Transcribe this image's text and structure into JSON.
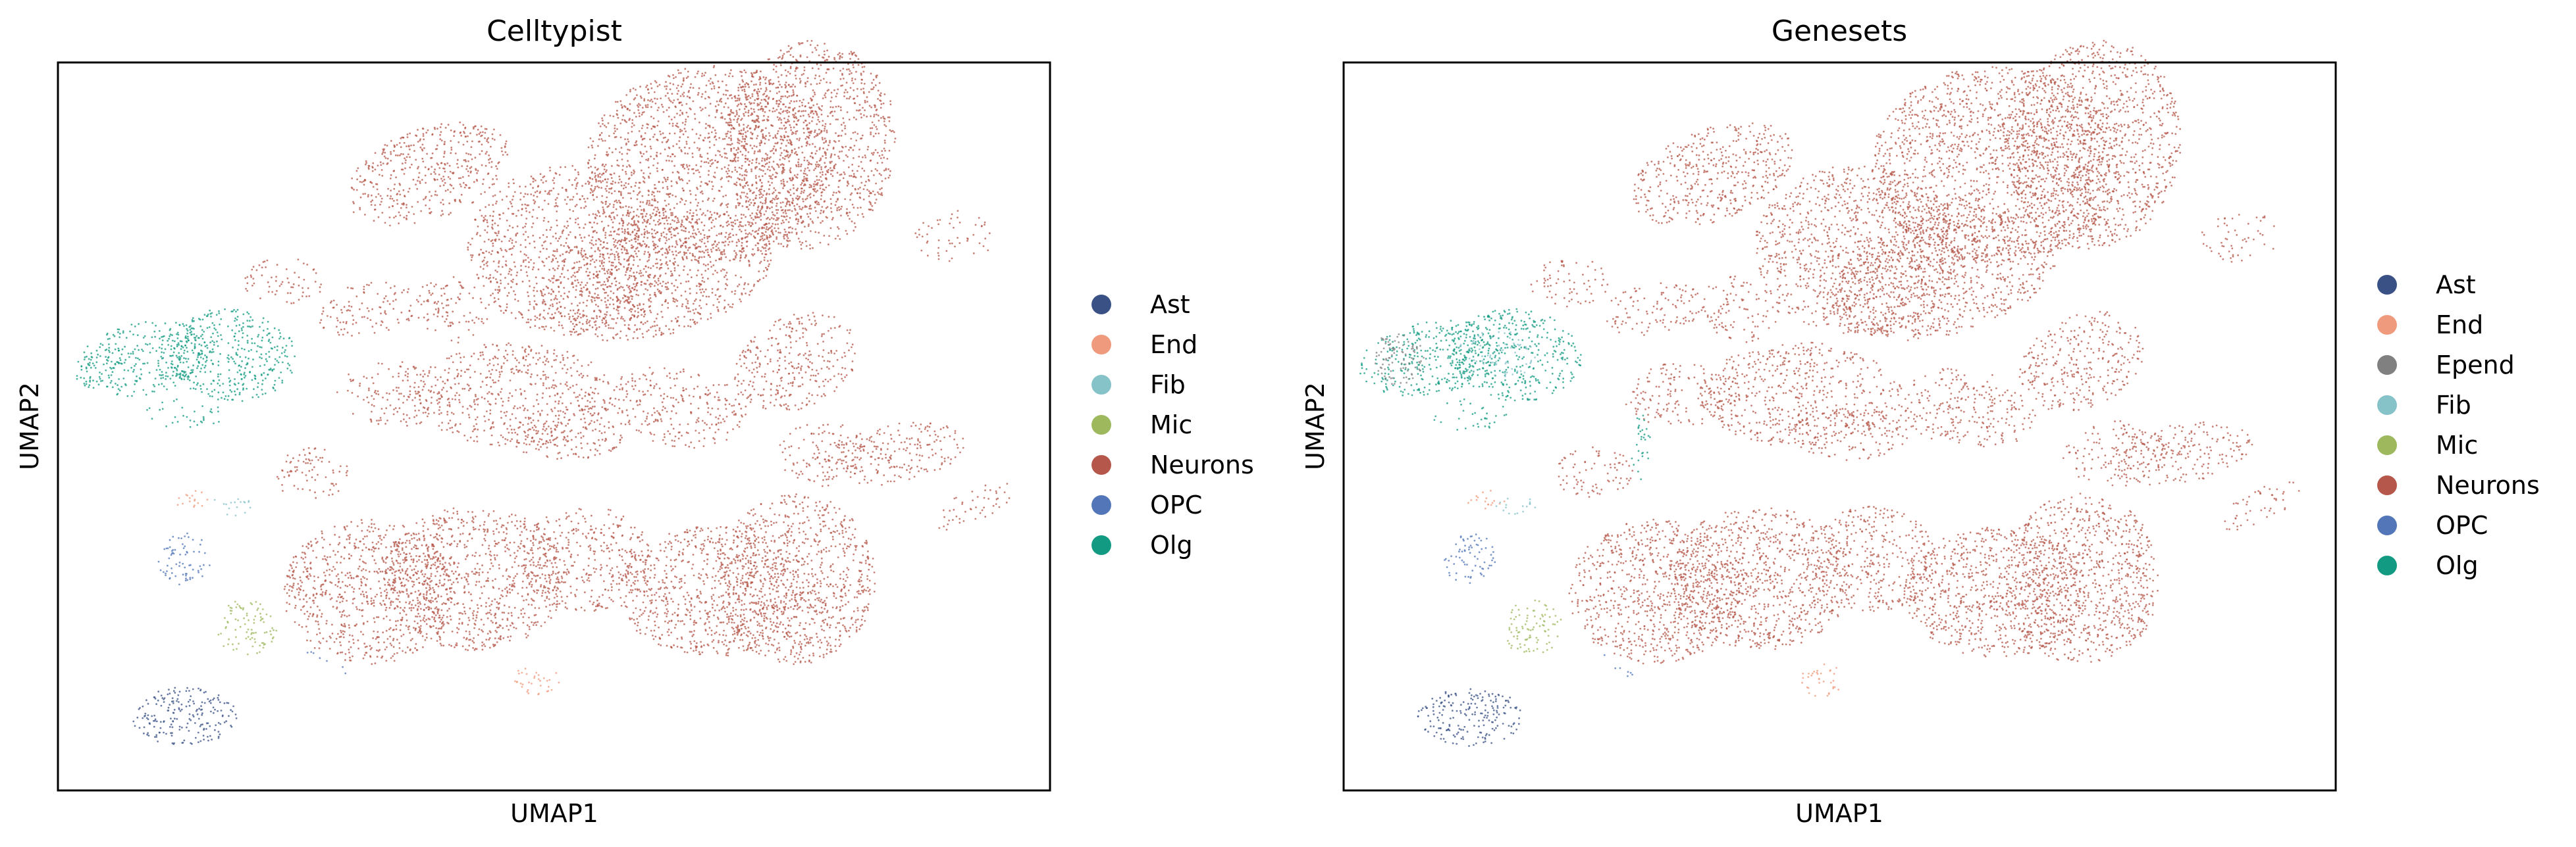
{
  "chart_data": [
    {
      "type": "scatter",
      "title": "Celltypist",
      "xlabel": "UMAP1",
      "ylabel": "UMAP2",
      "xticks": "none",
      "yticks": "none",
      "grid": false,
      "legend_placement": "right",
      "legend": [
        {
          "name": "Ast",
          "color": "#3a5186"
        },
        {
          "name": "End",
          "color": "#ef9a7c"
        },
        {
          "name": "Fib",
          "color": "#86c3c9"
        },
        {
          "name": "Mic",
          "color": "#9db85d"
        },
        {
          "name": "Neurons",
          "color": "#b5574a"
        },
        {
          "name": "OPC",
          "color": "#5276b8"
        },
        {
          "name": "Olg",
          "color": "#129b82"
        }
      ]
    },
    {
      "type": "scatter",
      "title": "Genesets",
      "xlabel": "UMAP1",
      "ylabel": "UMAP2",
      "xticks": "none",
      "yticks": "none",
      "grid": false,
      "legend_placement": "right",
      "legend": [
        {
          "name": "Ast",
          "color": "#3a5186"
        },
        {
          "name": "End",
          "color": "#ef9a7c"
        },
        {
          "name": "Epend",
          "color": "#808080"
        },
        {
          "name": "Fib",
          "color": "#86c3c9"
        },
        {
          "name": "Mic",
          "color": "#9db85d"
        },
        {
          "name": "Neurons",
          "color": "#b5574a"
        },
        {
          "name": "OPC",
          "color": "#5276b8"
        },
        {
          "name": "Olg",
          "color": "#129b82"
        }
      ]
    }
  ]
}
